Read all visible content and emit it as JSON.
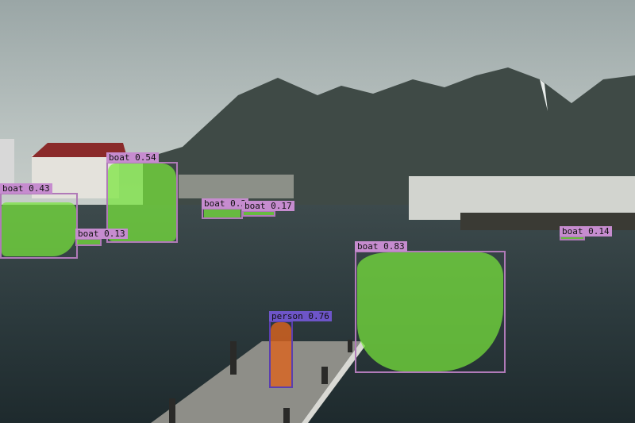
{
  "image": {
    "title": ""
  },
  "colors": {
    "boat_mask": "#78e63c",
    "boat_box": "#b07ab8",
    "person_mask": "#dc641e",
    "person_box": "#5a3fb0"
  },
  "detections": [
    {
      "id": "d1",
      "class": "boat",
      "score": "0.43",
      "label": "boat 0.43"
    },
    {
      "id": "d2",
      "class": "boat",
      "score": "0.54",
      "label": "boat 0.54"
    },
    {
      "id": "d3",
      "class": "boat",
      "score": "0.13",
      "label": "boat 0.13"
    },
    {
      "id": "d4",
      "class": "boat",
      "score": "0.3",
      "label": "boat 0.3"
    },
    {
      "id": "d5",
      "class": "boat",
      "score": "0.17",
      "label": "boat 0.17"
    },
    {
      "id": "d6",
      "class": "boat",
      "score": "0.83",
      "label": "boat 0.83"
    },
    {
      "id": "d7",
      "class": "boat",
      "score": "0.14",
      "label": "boat 0.14"
    },
    {
      "id": "d8",
      "class": "person",
      "score": "0.76",
      "label": "person 0.76"
    }
  ]
}
